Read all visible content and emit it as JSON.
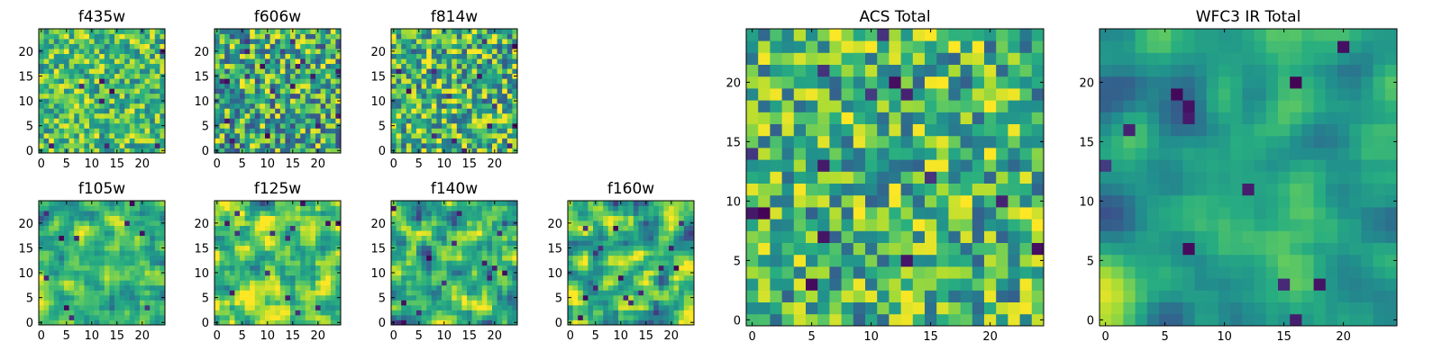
{
  "chart_data": [
    {
      "type": "heatmap",
      "title": "f435w",
      "colormap": "viridis",
      "grid_size": 25,
      "xlim": [
        -0.5,
        24.5
      ],
      "ylim": [
        -0.5,
        24.5
      ],
      "xticks": [
        0,
        5,
        10,
        15,
        20
      ],
      "yticks": [
        0,
        5,
        10,
        15,
        20
      ],
      "seed": 101,
      "base": 0.7,
      "noise": 0.3,
      "smooth": 0,
      "n_dark": 8
    },
    {
      "type": "heatmap",
      "title": "f606w",
      "colormap": "viridis",
      "grid_size": 25,
      "xlim": [
        -0.5,
        24.5
      ],
      "ylim": [
        -0.5,
        24.5
      ],
      "xticks": [
        0,
        5,
        10,
        15,
        20
      ],
      "yticks": [
        0,
        5,
        10,
        15,
        20
      ],
      "seed": 202,
      "base": 0.62,
      "noise": 0.4,
      "smooth": 0,
      "n_dark": 18
    },
    {
      "type": "heatmap",
      "title": "f814w",
      "colormap": "viridis",
      "grid_size": 25,
      "xlim": [
        -0.5,
        24.5
      ],
      "ylim": [
        -0.5,
        24.5
      ],
      "xticks": [
        0,
        5,
        10,
        15,
        20
      ],
      "yticks": [
        0,
        5,
        10,
        15,
        20
      ],
      "seed": 303,
      "base": 0.66,
      "noise": 0.38,
      "smooth": 0,
      "n_dark": 14
    },
    {
      "type": "heatmap",
      "title": "f105w",
      "colormap": "viridis",
      "grid_size": 25,
      "xlim": [
        -0.5,
        24.5
      ],
      "ylim": [
        -0.5,
        24.5
      ],
      "xticks": [
        0,
        5,
        10,
        15,
        20
      ],
      "yticks": [
        0,
        5,
        10,
        15,
        20
      ],
      "seed": 404,
      "base": 0.66,
      "noise": 0.4,
      "smooth": 1,
      "n_dark": 10
    },
    {
      "type": "heatmap",
      "title": "f125w",
      "colormap": "viridis",
      "grid_size": 25,
      "xlim": [
        -0.5,
        24.5
      ],
      "ylim": [
        -0.5,
        24.5
      ],
      "xticks": [
        0,
        5,
        10,
        15,
        20
      ],
      "yticks": [
        0,
        5,
        10,
        15,
        20
      ],
      "seed": 505,
      "base": 0.66,
      "noise": 0.45,
      "smooth": 1,
      "n_dark": 14
    },
    {
      "type": "heatmap",
      "title": "f140w",
      "colormap": "viridis",
      "grid_size": 25,
      "xlim": [
        -0.5,
        24.5
      ],
      "ylim": [
        -0.5,
        24.5
      ],
      "xticks": [
        0,
        5,
        10,
        15,
        20
      ],
      "yticks": [
        0,
        5,
        10,
        15,
        20
      ],
      "seed": 606,
      "base": 0.64,
      "noise": 0.45,
      "smooth": 1,
      "n_dark": 14
    },
    {
      "type": "heatmap",
      "title": "f160w",
      "colormap": "viridis",
      "grid_size": 25,
      "xlim": [
        -0.5,
        24.5
      ],
      "ylim": [
        -0.5,
        24.5
      ],
      "xticks": [
        0,
        5,
        10,
        15,
        20
      ],
      "yticks": [
        0,
        5,
        10,
        15,
        20
      ],
      "seed": 707,
      "base": 0.64,
      "noise": 0.5,
      "smooth": 1,
      "n_dark": 16
    },
    {
      "type": "heatmap",
      "title": "ACS Total",
      "colormap": "viridis",
      "grid_size": 25,
      "xlim": [
        -0.5,
        24.5
      ],
      "ylim": [
        -0.5,
        24.5
      ],
      "xticks": [
        0,
        5,
        10,
        15,
        20
      ],
      "yticks": [
        0,
        5,
        10,
        15,
        20
      ],
      "seed": 808,
      "base": 0.66,
      "noise": 0.35,
      "smooth": 0,
      "n_dark": 16
    },
    {
      "type": "heatmap",
      "title": "WFC3 IR Total",
      "colormap": "viridis",
      "grid_size": 25,
      "xlim": [
        -0.5,
        24.5
      ],
      "ylim": [
        -0.5,
        24.5
      ],
      "xticks": [
        0,
        5,
        10,
        15,
        20
      ],
      "yticks": [
        0,
        5,
        10,
        15,
        20
      ],
      "seed": 909,
      "base": 0.6,
      "noise": 0.35,
      "smooth": 2,
      "n_dark": 12
    }
  ]
}
